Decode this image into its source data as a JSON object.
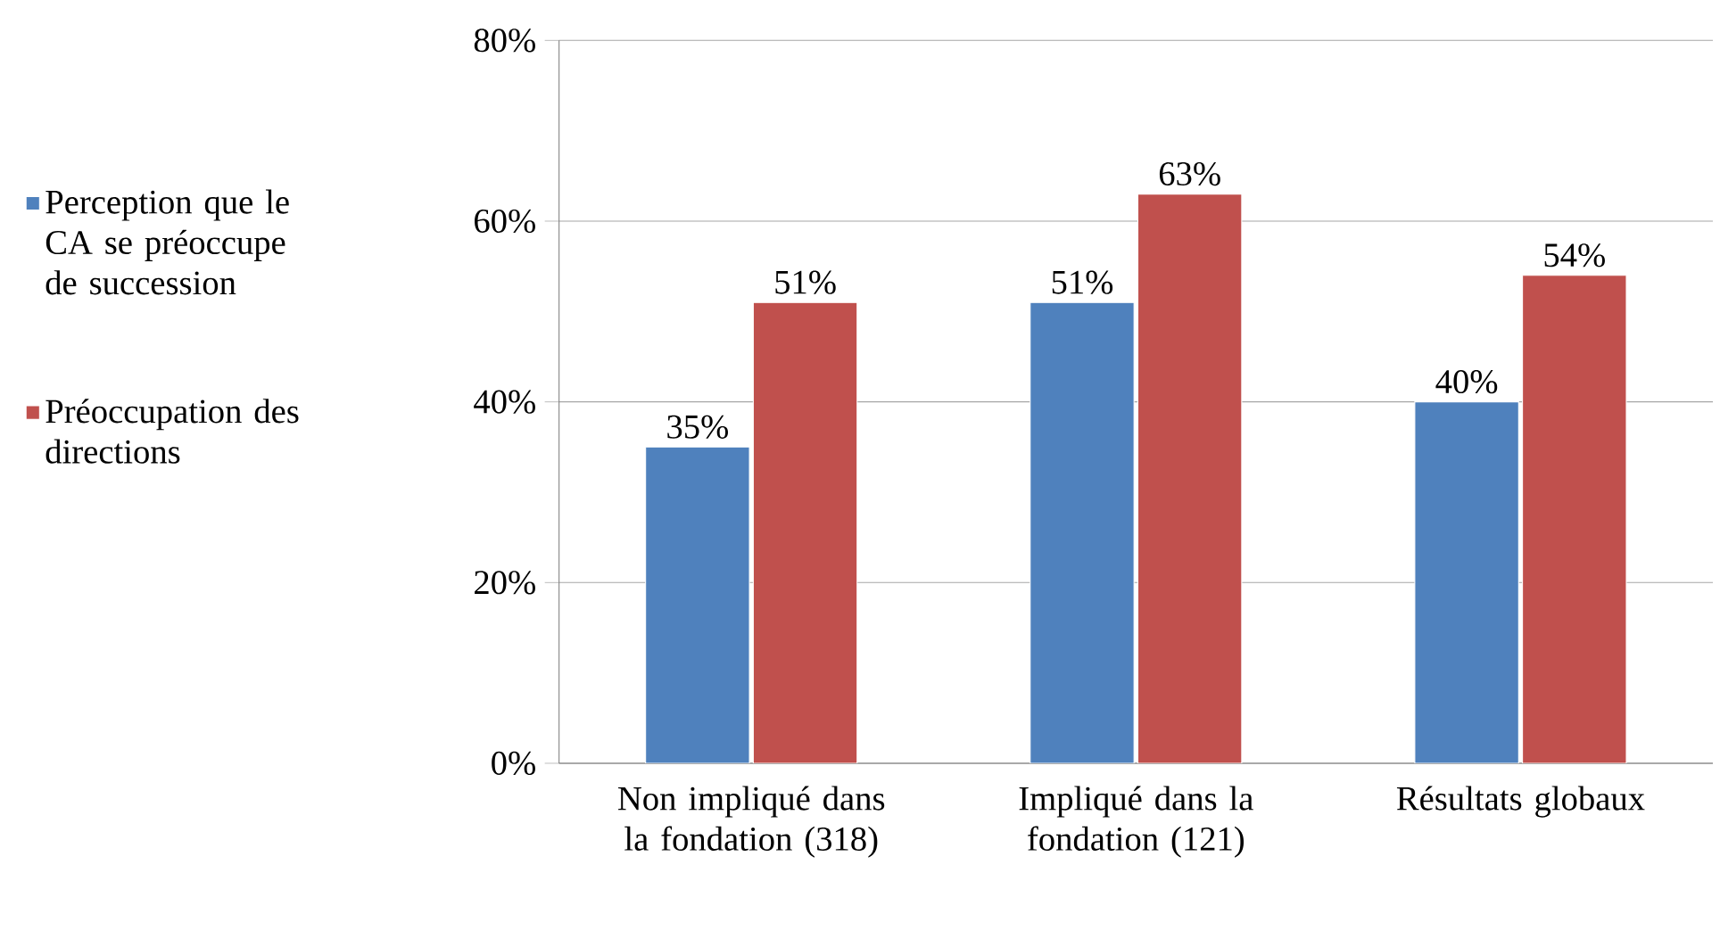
{
  "chart_data": {
    "type": "bar",
    "categories": [
      "Non impliqué dans la fondation (318)",
      "Impliqué dans la fondation (121)",
      "Résultats globaux"
    ],
    "series": [
      {
        "name": "Perception que le CA se préoccupe de succession",
        "color": "#4f81bd",
        "values": [
          35,
          51,
          40
        ],
        "value_labels": [
          "35%",
          "51%",
          "40%"
        ]
      },
      {
        "name": "Préoccupation des directions",
        "color": "#c0504d",
        "values": [
          51,
          63,
          54
        ],
        "value_labels": [
          "51%",
          "63%",
          "54%"
        ]
      }
    ],
    "ylim": [
      0,
      80
    ],
    "yticks": [
      {
        "value": 0,
        "label": "0%"
      },
      {
        "value": 20,
        "label": "20%"
      },
      {
        "value": 40,
        "label": "40%"
      },
      {
        "value": 60,
        "label": "60%"
      },
      {
        "value": 80,
        "label": "80%"
      }
    ],
    "grid": "y",
    "legend": "left"
  }
}
